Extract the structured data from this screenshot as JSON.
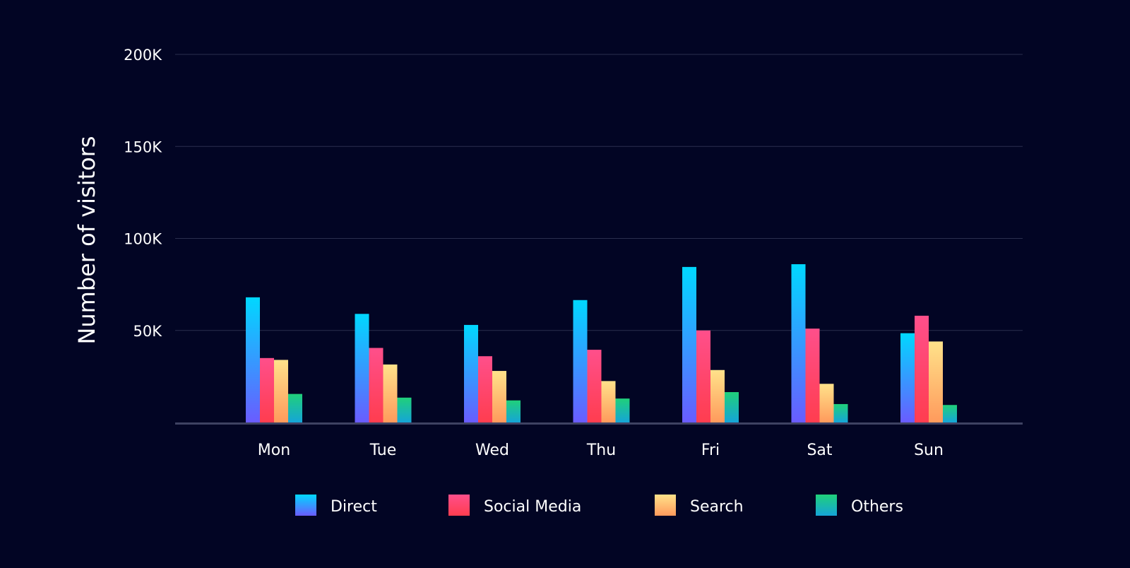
{
  "chart_data": {
    "type": "bar",
    "title": "",
    "xlabel": "",
    "ylabel": "Number of visitors",
    "categories": [
      "Mon",
      "Tue",
      "Wed",
      "Thu",
      "Fri",
      "Sat",
      "Sun"
    ],
    "ylim": [
      0,
      200000
    ],
    "yticks": [
      50000,
      100000,
      150000,
      200000
    ],
    "ytick_labels": [
      "50K",
      "100K",
      "150K",
      "200K"
    ],
    "grid": true,
    "legend_position": "bottom",
    "series": [
      {
        "name": "Direct",
        "values": [
          68000,
          59000,
          53000,
          66500,
          84500,
          86000,
          48500
        ],
        "color_top": "#00d8ff",
        "color_bottom": "#6a5cff"
      },
      {
        "name": "Social Media",
        "values": [
          35000,
          40500,
          36000,
          39500,
          50000,
          51000,
          58000
        ],
        "color_top": "#ff4f8b",
        "color_bottom": "#ff3d4f"
      },
      {
        "name": "Search",
        "values": [
          34000,
          31500,
          28000,
          22500,
          28500,
          21000,
          44000
        ],
        "color_top": "#ffe28a",
        "color_bottom": "#ff9a5c"
      },
      {
        "name": "Others",
        "values": [
          15500,
          13500,
          12000,
          13000,
          16500,
          10000,
          9500
        ],
        "color_top": "#20d07a",
        "color_bottom": "#15a5d8"
      }
    ],
    "colors": {
      "background": "#020524",
      "gridline": "#2a2e4e",
      "axis": "#3e4262",
      "text": "#ffffff"
    }
  }
}
